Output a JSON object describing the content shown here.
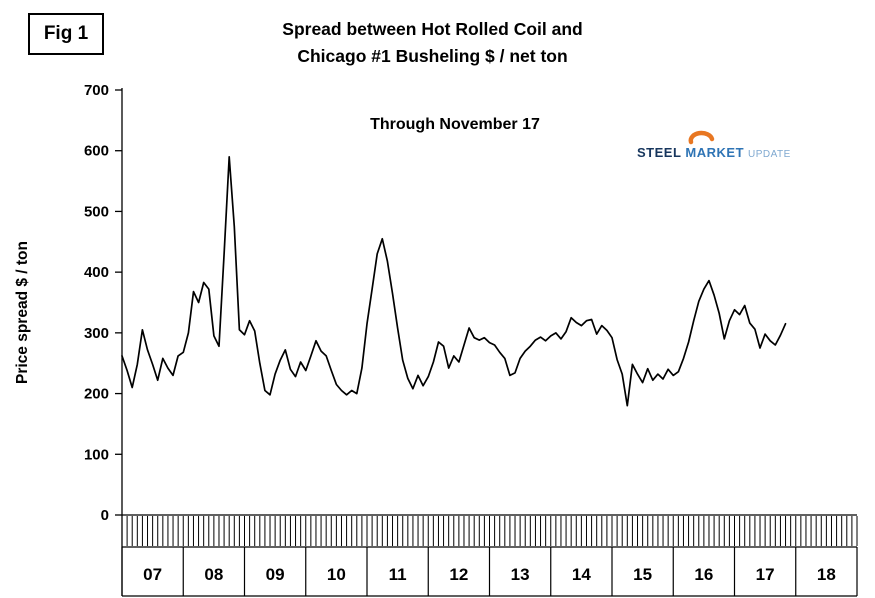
{
  "figure_label": "Fig 1",
  "title": {
    "line1": "Spread between Hot Rolled Coil and",
    "line2": "Chicago #1 Busheling  $ / net ton"
  },
  "annotation": "Through November 17",
  "logo": {
    "steel": "STEEL",
    "market": "MARKET",
    "update": "UPDATE"
  },
  "colors": {
    "line": "#000000",
    "axis": "#000000",
    "logo_orange": "#E87722",
    "logo_dark_blue": "#17365D",
    "logo_blue": "#2E74B5",
    "logo_light_blue": "#7FA8D0"
  },
  "chart_data": {
    "type": "line",
    "title": "Spread between Hot Rolled Coil and Chicago #1 Busheling $ / net ton",
    "subtitle": "Through November 17",
    "xlabel": "",
    "ylabel": "Price spread $ / ton",
    "ylim": [
      0,
      700
    ],
    "yticks": [
      0,
      100,
      200,
      300,
      400,
      500,
      600,
      700
    ],
    "grid": false,
    "legend": "none",
    "x_start": "2007-01",
    "x_end": "2017-11",
    "x_frequency": "monthly",
    "year_labels": [
      "07",
      "08",
      "09",
      "10",
      "11",
      "12",
      "13",
      "14",
      "15",
      "16",
      "17",
      "18"
    ],
    "values": [
      262,
      238,
      210,
      248,
      305,
      272,
      248,
      222,
      258,
      242,
      230,
      262,
      268,
      300,
      368,
      350,
      383,
      372,
      295,
      278,
      430,
      590,
      475,
      305,
      297,
      320,
      303,
      250,
      205,
      198,
      232,
      255,
      272,
      240,
      228,
      252,
      238,
      262,
      287,
      270,
      262,
      238,
      215,
      205,
      198,
      205,
      200,
      242,
      315,
      372,
      430,
      455,
      418,
      365,
      308,
      255,
      225,
      208,
      230,
      213,
      228,
      252,
      285,
      278,
      242,
      262,
      252,
      280,
      308,
      292,
      288,
      292,
      284,
      280,
      268,
      258,
      230,
      234,
      258,
      270,
      278,
      288,
      293,
      287,
      295,
      300,
      290,
      302,
      325,
      317,
      312,
      320,
      322,
      298,
      312,
      304,
      292,
      256,
      232,
      180,
      248,
      232,
      218,
      241,
      222,
      232,
      224,
      240,
      230,
      236,
      258,
      285,
      320,
      352,
      372,
      386,
      362,
      332,
      290,
      320,
      338,
      330,
      345,
      316,
      306,
      275,
      298,
      287,
      280,
      296,
      315
    ]
  }
}
